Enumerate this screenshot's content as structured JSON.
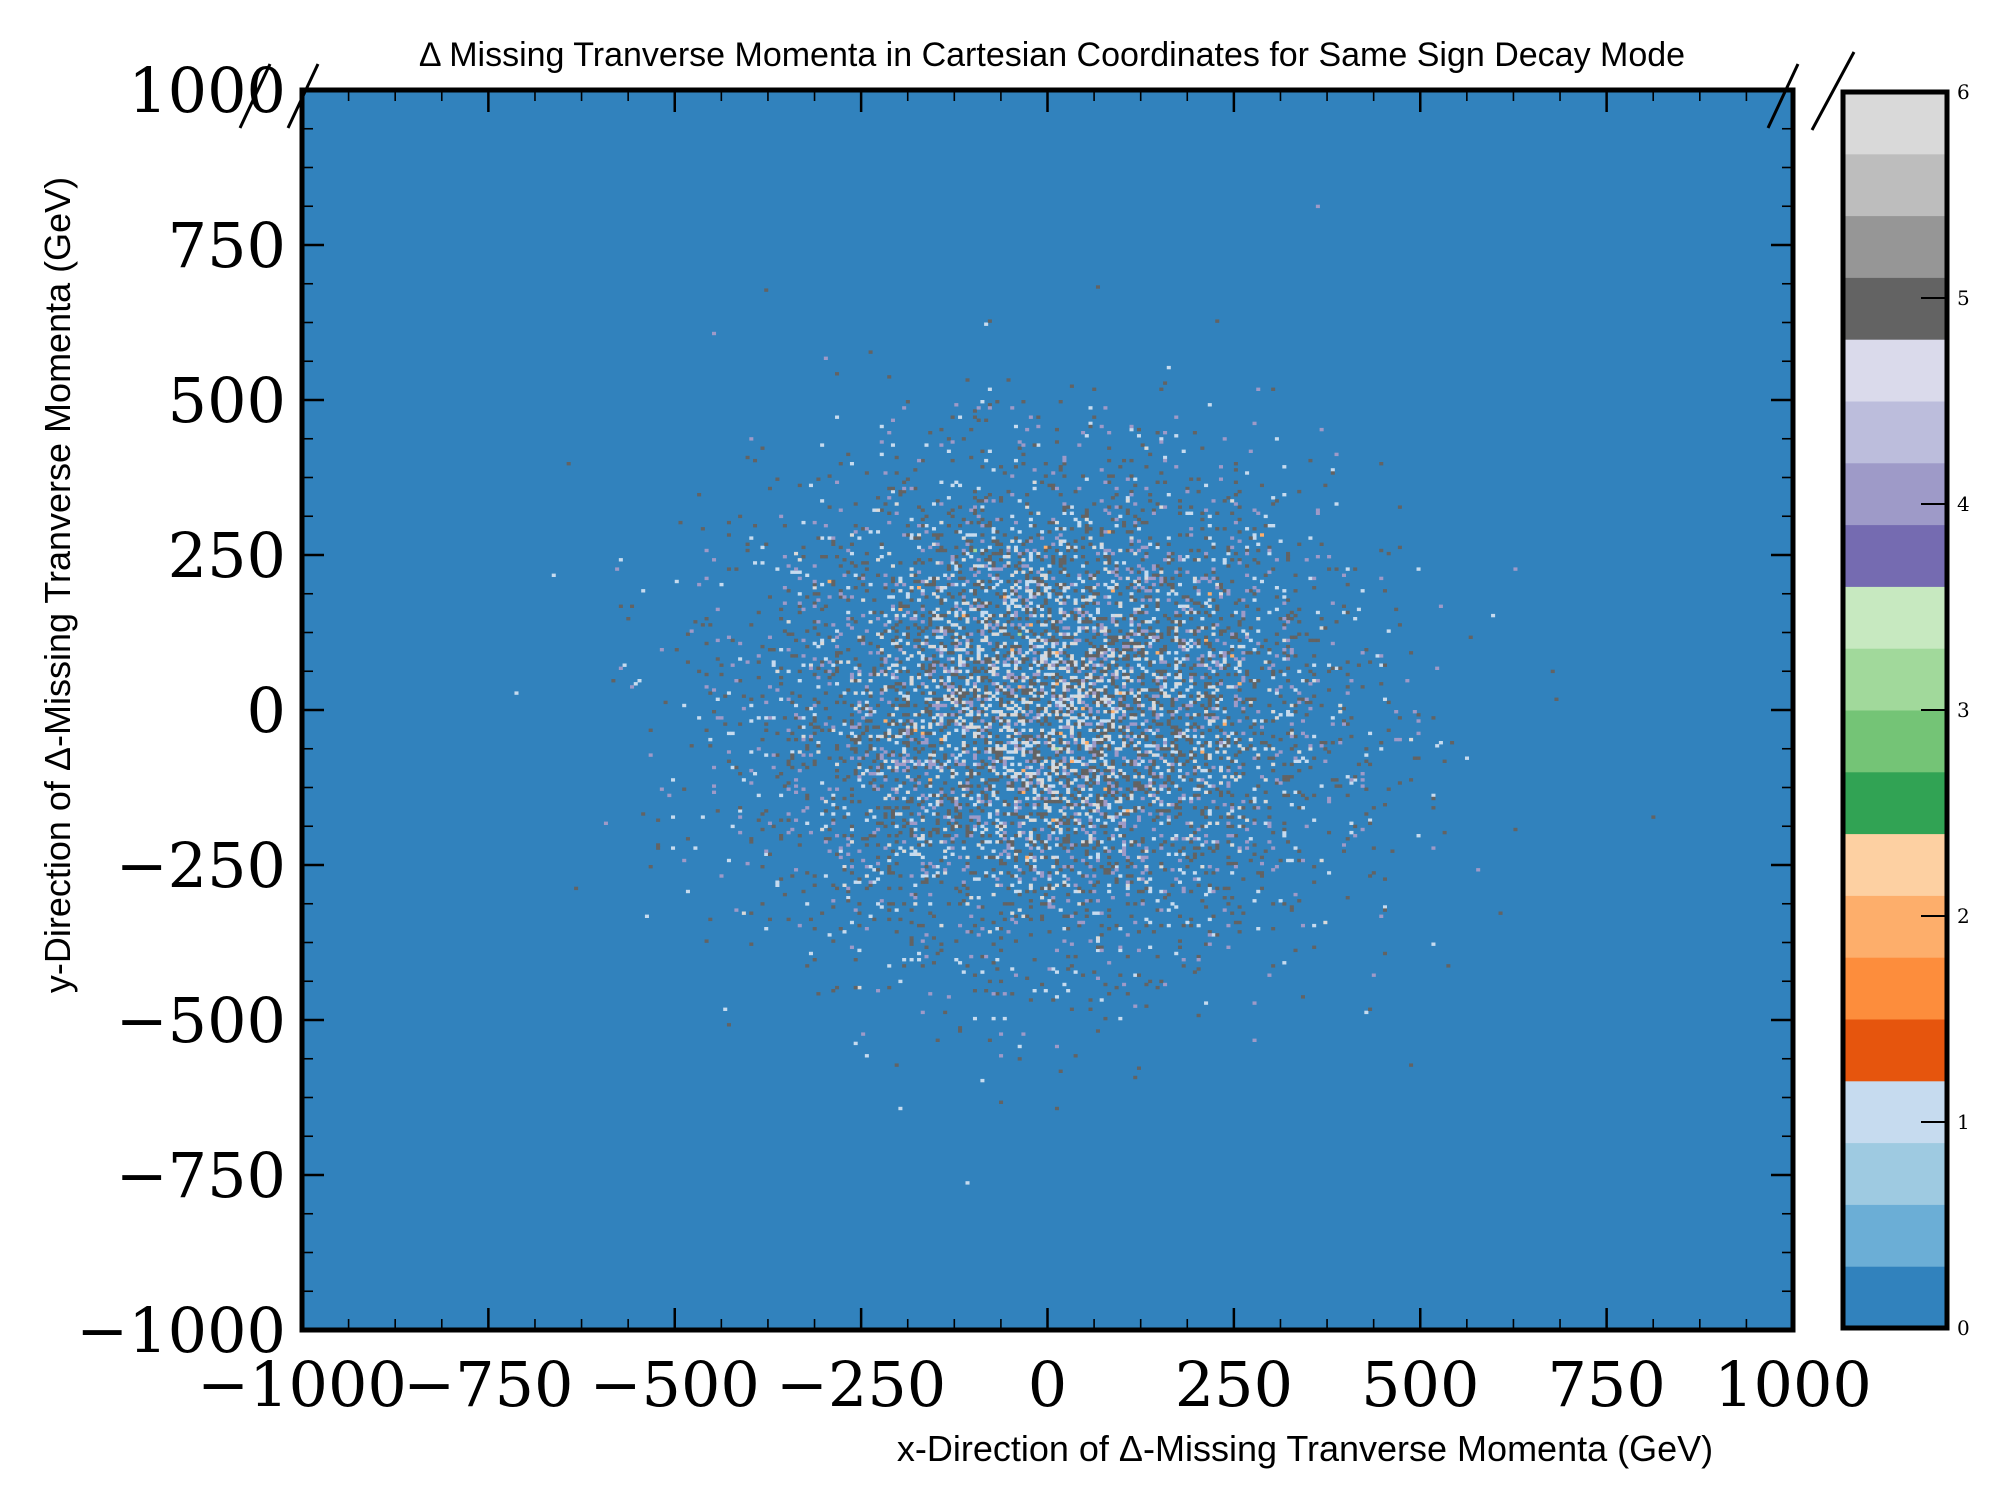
{
  "chart_data": {
    "type": "heatmap",
    "title": "Δ Missing Tranverse Momenta in Cartesian Coordinates for Same Sign Decay Mode",
    "xlabel": "x-Direction of Δ-Missing Tranverse Momenta (GeV)",
    "ylabel": "y-Direction of Δ-Missing Tranverse Momenta (GeV)",
    "xlim": [
      -1000,
      1000
    ],
    "ylim": [
      -1000,
      1000
    ],
    "x_ticks": [
      "−1000",
      "−750",
      "−500",
      "−250",
      "0",
      "250",
      "500",
      "750",
      "1000"
    ],
    "x_tick_values": [
      -1000,
      -750,
      -500,
      -250,
      0,
      250,
      500,
      750,
      1000
    ],
    "y_ticks": [
      "−1000",
      "−750",
      "−500",
      "−250",
      "0",
      "250",
      "500",
      "750",
      "1000"
    ],
    "y_tick_values": [
      -1000,
      -750,
      -500,
      -250,
      0,
      250,
      500,
      750,
      1000
    ],
    "bins": 400,
    "distribution": {
      "center_x": 0,
      "center_y": 0,
      "sigma_x": 190,
      "sigma_y": 190
    },
    "colorbar": {
      "min": 0,
      "max": 6,
      "tick_labels": [
        "0",
        "1",
        "2",
        "3",
        "4",
        "5",
        "6"
      ],
      "tick_values": [
        0,
        1,
        2,
        3,
        4,
        5,
        6
      ],
      "colors": [
        "#3182bd",
        "#6baed6",
        "#9ecae1",
        "#c6dbef",
        "#e6550d",
        "#fd8d3c",
        "#fdae6b",
        "#fdd0a2",
        "#31a354",
        "#74c476",
        "#a1d99b",
        "#c7e9c0",
        "#756bb1",
        "#9e9ac8",
        "#bcbddc",
        "#dadaeb",
        "#636363",
        "#969696",
        "#bdbdbd",
        "#d9d9d9"
      ],
      "colormap": "tab20c"
    },
    "grid": false
  }
}
